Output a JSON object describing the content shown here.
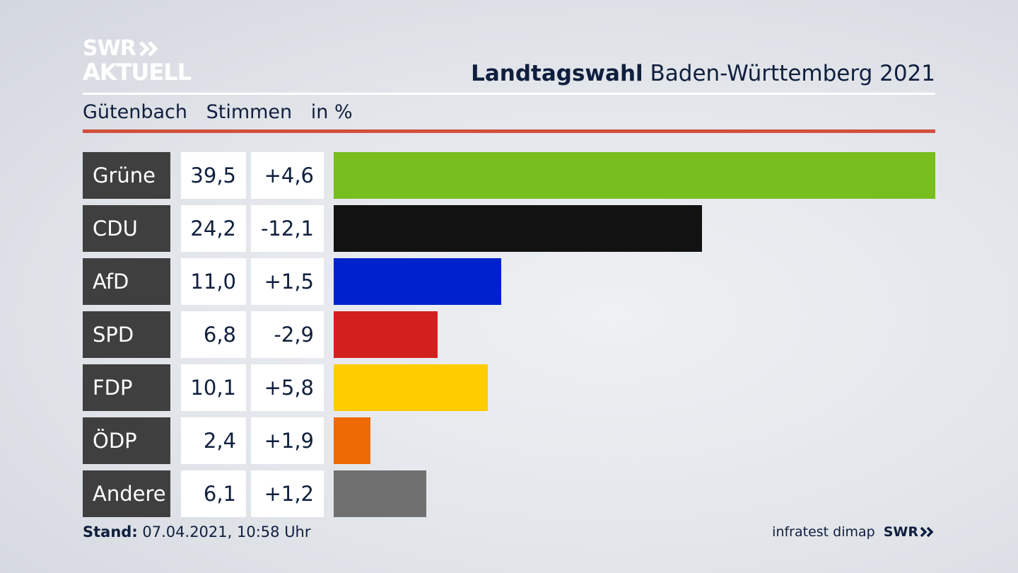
{
  "brand": {
    "line1": "SWR",
    "line2": "AKTUELL",
    "footer_logo": "SWR",
    "chevron_icon": "double-chevron-right-icon"
  },
  "header": {
    "title_bold": "Landtagswahl",
    "title_rest": "Baden-Württemberg 2021"
  },
  "subheader": {
    "place": "Gütenbach",
    "measure": "Stimmen",
    "unit": "in %"
  },
  "colors": {
    "accent_rule": "#d0503e",
    "label_bg": "#3f3f3f"
  },
  "chart_data": {
    "type": "bar",
    "orientation": "horizontal",
    "value_max": 39.5,
    "categories": [
      "Grüne",
      "CDU",
      "AfD",
      "SPD",
      "FDP",
      "ÖDP",
      "Andere"
    ],
    "values_display": [
      "39,5",
      "24,2",
      "11,0",
      "6,8",
      "10,1",
      "2,4",
      "6,1"
    ],
    "values": [
      39.5,
      24.2,
      11.0,
      6.8,
      10.1,
      2.4,
      6.1
    ],
    "changes_display": [
      "+4,6",
      "-12,1",
      "+1,5",
      "-2,9",
      "+5,8",
      "+1,9",
      "+1,2"
    ],
    "changes": [
      4.6,
      -12.1,
      1.5,
      -2.9,
      5.8,
      1.9,
      1.2
    ],
    "colors": [
      "#78be1e",
      "#121212",
      "#0022cc",
      "#d41f1f",
      "#ffcc00",
      "#ee6a05",
      "#707070"
    ]
  },
  "footer": {
    "stand_label": "Stand:",
    "stand_value": "07.04.2021, 10:58 Uhr",
    "source": "infratest dimap"
  }
}
